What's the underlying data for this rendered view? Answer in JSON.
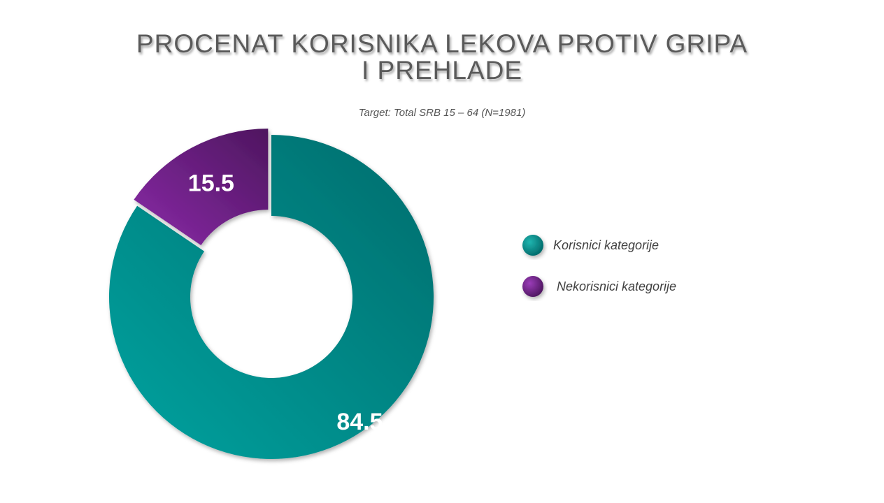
{
  "title_lines": [
    "PROCENAT KORISNIKA LEKOVA PROTIV GRIPA",
    "I PREHLADE"
  ],
  "subtitle": "Target: Total SRB 15 – 64 (N=1981)",
  "chart_data": {
    "type": "pie",
    "variant": "donut",
    "title": "PROCENAT KORISNIKA LEKOVA PROTIV GRIPA I PREHLADE",
    "subtitle": "Target: Total SRB 15 – 64 (N=1981)",
    "categories": [
      "Korisnici kategorije",
      "Nekorisnici kategorije"
    ],
    "values": [
      84.5,
      15.5
    ],
    "data_labels": [
      "84.5",
      "15.5"
    ],
    "colors": [
      "#00918f",
      "#6a2386"
    ],
    "exploded": [
      false,
      true
    ],
    "legend_position": "right"
  }
}
